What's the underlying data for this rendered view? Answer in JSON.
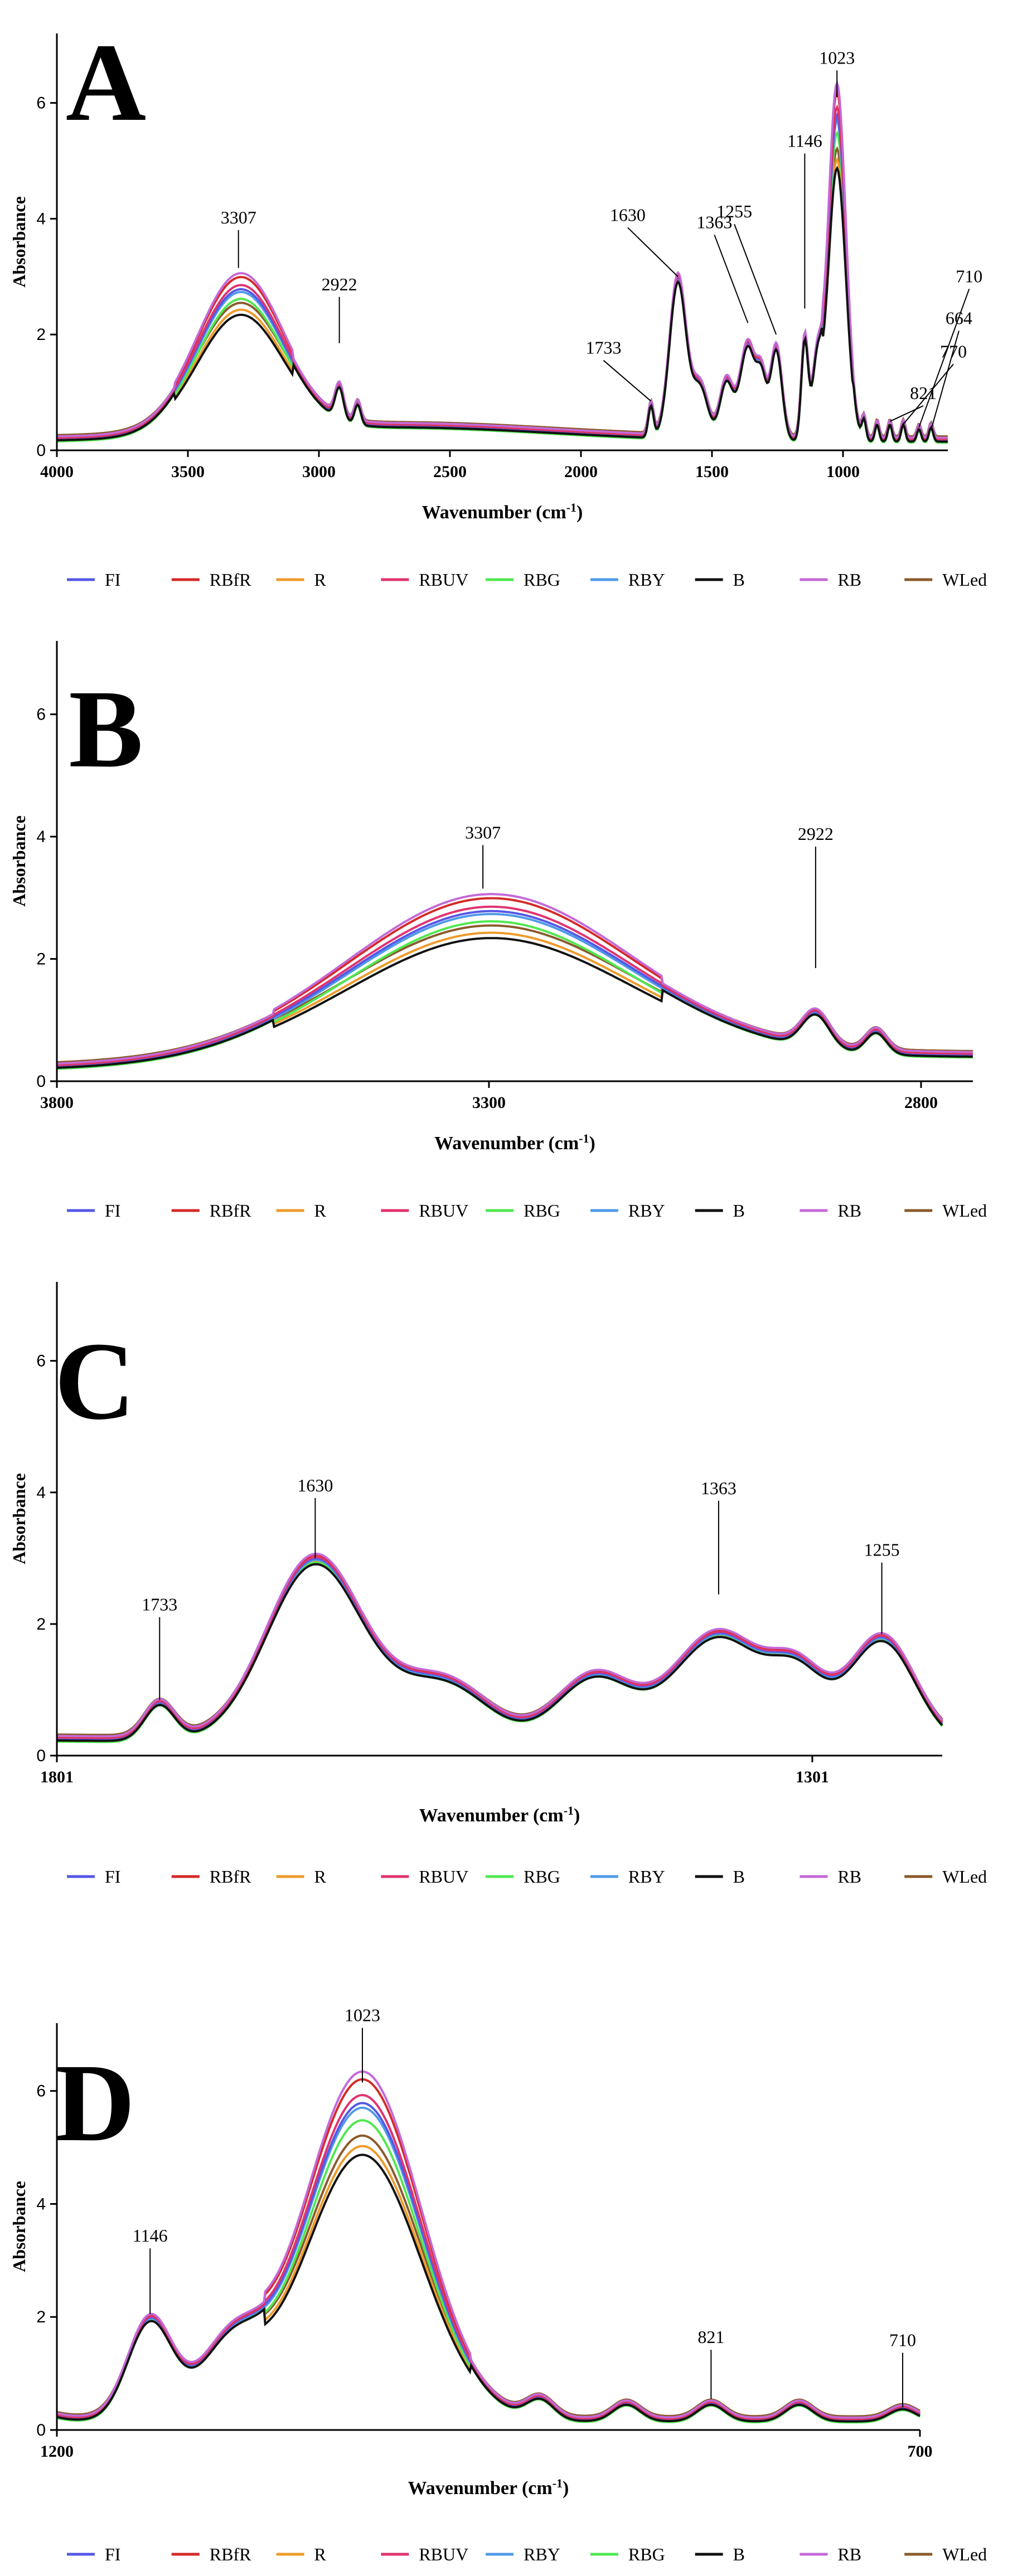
{
  "legend_series": [
    {
      "name": "FI",
      "color": "#5558e6"
    },
    {
      "name": "RBfR",
      "color": "#d42a2a"
    },
    {
      "name": "R",
      "color": "#ee9a2a"
    },
    {
      "name": "RBUV",
      "color": "#e0336f"
    },
    {
      "name": "RBG",
      "color": "#4fe84f"
    },
    {
      "name": "RBY",
      "color": "#4f9ae8"
    },
    {
      "name": "B",
      "color": "#111111"
    },
    {
      "name": "RB",
      "color": "#c469d8"
    },
    {
      "name": "WLed",
      "color": "#8b5a2b"
    }
  ],
  "legend_series_d": [
    {
      "name": "FI",
      "color": "#5558e6"
    },
    {
      "name": "RBfR",
      "color": "#d42a2a"
    },
    {
      "name": "R",
      "color": "#ee9a2a"
    },
    {
      "name": "RBUV",
      "color": "#e0336f"
    },
    {
      "name": "RBY",
      "color": "#4f9ae8"
    },
    {
      "name": "RBG",
      "color": "#4fe84f"
    },
    {
      "name": "B",
      "color": "#111111"
    },
    {
      "name": "RB",
      "color": "#c469d8"
    },
    {
      "name": "WLed",
      "color": "#8b5a2b"
    }
  ],
  "chart_data": [
    {
      "panel_label": "A",
      "type": "line",
      "xlabel_main": "Wavenumber (cm",
      "xlabel_sup": "-1",
      "xlabel_end": ")",
      "ylabel": "Absorbance",
      "xlim": [
        4000,
        600
      ],
      "ylim": [
        0,
        7.2
      ],
      "xticks": [
        4000,
        3500,
        3000,
        2500,
        2000,
        1500,
        1000
      ],
      "xtick_labels": [
        "4000",
        "3500",
        "3000",
        "2500",
        "2000",
        "1500",
        "1000"
      ],
      "yticks": [
        0,
        2,
        4,
        6
      ],
      "ytick_labels": [
        "0",
        "2",
        "4",
        "6"
      ],
      "annotations": [
        {
          "label": "3307",
          "x": 3307,
          "y": 3.15
        },
        {
          "label": "2922",
          "x": 2922,
          "y": 1.85
        },
        {
          "label": "1733",
          "x": 1733,
          "y": 0.85
        },
        {
          "label": "1630",
          "x": 1630,
          "y": 3.0
        },
        {
          "label": "1363",
          "x": 1363,
          "y": 2.2
        },
        {
          "label": "1255",
          "x": 1255,
          "y": 2.0
        },
        {
          "label": "1146",
          "x": 1146,
          "y": 2.45
        },
        {
          "label": "1023",
          "x": 1023,
          "y": 6.1
        },
        {
          "label": "821",
          "x": 821,
          "y": 0.5
        },
        {
          "label": "770",
          "x": 770,
          "y": 0.45
        },
        {
          "label": "710",
          "x": 710,
          "y": 0.4
        },
        {
          "label": "664",
          "x": 664,
          "y": 0.35
        }
      ],
      "series_scales": [
        {
          "name": "FI",
          "hi": 1.0,
          "off": 0.0
        },
        {
          "name": "RBfR",
          "hi": 1.06,
          "off": 0.05
        },
        {
          "name": "R",
          "hi": 0.88,
          "off": 0.0
        },
        {
          "name": "RBUV",
          "hi": 1.02,
          "off": 0.02
        },
        {
          "name": "RBG",
          "hi": 0.96,
          "off": -0.08
        },
        {
          "name": "RBY",
          "hi": 0.99,
          "off": -0.03
        },
        {
          "name": "B",
          "hi": 0.86,
          "off": -0.05
        },
        {
          "name": "RB",
          "hi": 1.08,
          "off": 0.06
        },
        {
          "name": "WLed",
          "hi": 0.9,
          "off": 0.1
        }
      ]
    },
    {
      "panel_label": "B",
      "type": "line",
      "xlabel_main": "Wavenumber (cm",
      "xlabel_sup": "-1",
      "xlabel_end": ")",
      "ylabel": "Absorbance",
      "xlim": [
        3800,
        2740
      ],
      "ylim": [
        0,
        7.2
      ],
      "xticks": [
        3800,
        3300,
        2800
      ],
      "xtick_labels": [
        "3800",
        "3300",
        "2800"
      ],
      "yticks": [
        0,
        2,
        4,
        6
      ],
      "ytick_labels": [
        "0",
        "2",
        "4",
        "6"
      ],
      "annotations": [
        {
          "label": "3307",
          "x": 3307,
          "y": 3.15
        },
        {
          "label": "2922",
          "x": 2922,
          "y": 1.85
        }
      ]
    },
    {
      "panel_label": "C",
      "type": "line",
      "xlabel_main": "Wavenumber (cm",
      "xlabel_sup": "-1",
      "xlabel_end": ")",
      "ylabel": "Absorbance",
      "xlim": [
        1801,
        1215
      ],
      "ylim": [
        0,
        7.2
      ],
      "xticks": [
        1801,
        1301
      ],
      "xtick_labels": [
        "1801",
        "1301"
      ],
      "yticks": [
        0,
        2,
        4,
        6
      ],
      "ytick_labels": [
        "0",
        "2",
        "4",
        "6"
      ],
      "annotations": [
        {
          "label": "1733",
          "x": 1733,
          "y": 0.85
        },
        {
          "label": "1630",
          "x": 1630,
          "y": 3.0
        },
        {
          "label": "1363",
          "x": 1363,
          "y": 2.45
        },
        {
          "label": "1255",
          "x": 1255,
          "y": 1.85
        }
      ]
    },
    {
      "panel_label": "D",
      "type": "line",
      "xlabel_main": "Wavenumber (cm",
      "xlabel_sup": "-1",
      "xlabel_end": ")",
      "ylabel": "Absorbance",
      "xlim": [
        1200,
        700
      ],
      "ylim": [
        0,
        7.2
      ],
      "xticks": [
        1200,
        700
      ],
      "xtick_labels": [
        "1200",
        "700"
      ],
      "yticks": [
        0,
        2,
        4,
        6
      ],
      "ytick_labels": [
        "0",
        "2",
        "4",
        "6"
      ],
      "annotations": [
        {
          "label": "1146",
          "x": 1146,
          "y": 2.05
        },
        {
          "label": "1023",
          "x": 1023,
          "y": 6.15
        },
        {
          "label": "821",
          "x": 821,
          "y": 0.55
        },
        {
          "label": "710",
          "x": 710,
          "y": 0.4
        }
      ]
    }
  ]
}
